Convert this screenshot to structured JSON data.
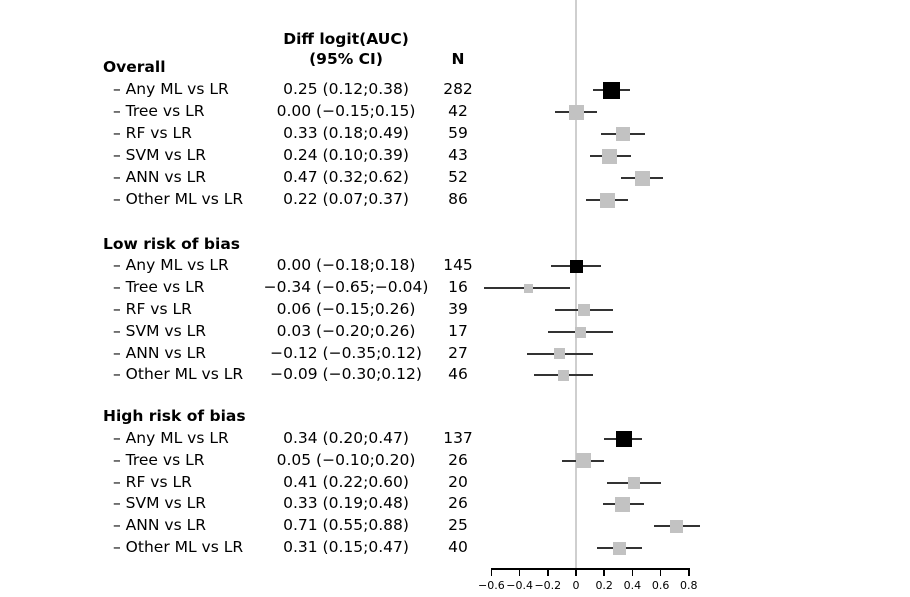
{
  "chart_data": {
    "type": "scatter",
    "variant": "forest-plot",
    "columns": {
      "effect_line1": "Diff logit(AUC)",
      "effect_line2": "(95% CI)",
      "n": "N"
    },
    "axis": {
      "xlim": [
        -0.6,
        0.8
      ],
      "reference_x": 0,
      "ticks": [
        {
          "value": -0.6,
          "label": "−0.6"
        },
        {
          "value": -0.4,
          "label": "−0.4"
        },
        {
          "value": -0.2,
          "label": "−0.2"
        },
        {
          "value": 0,
          "label": "0"
        },
        {
          "value": 0.2,
          "label": "0.2"
        },
        {
          "value": 0.4,
          "label": "0.4"
        },
        {
          "value": 0.6,
          "label": "0.6"
        },
        {
          "value": 0.8,
          "label": "0.8"
        }
      ]
    },
    "colors": {
      "marker": "#c2c2c2",
      "summary_marker": "#000000",
      "ci_line": "#333333",
      "reference_line": "#cfcfcf",
      "axis_line": "#000000",
      "text": "#000000",
      "background": "#ffffff"
    },
    "sections": [
      {
        "header": "Overall",
        "rows": [
          {
            "label": "– Any ML vs LR",
            "estimate": "0.25 (0.12;0.38)",
            "n": "282",
            "value": 0.25,
            "lower": 0.12,
            "upper": 0.38,
            "summary": true,
            "size": 17
          },
          {
            "label": "– Tree vs LR",
            "estimate": "0.00 (−0.15;0.15)",
            "n": "42",
            "value": 0.0,
            "lower": -0.15,
            "upper": 0.15,
            "summary": false,
            "size": 15
          },
          {
            "label": "– RF vs LR",
            "estimate": "0.33 (0.18;0.49)",
            "n": "59",
            "value": 0.33,
            "lower": 0.18,
            "upper": 0.49,
            "summary": false,
            "size": 14
          },
          {
            "label": "– SVM vs LR",
            "estimate": "0.24 (0.10;0.39)",
            "n": "43",
            "value": 0.24,
            "lower": 0.1,
            "upper": 0.39,
            "summary": false,
            "size": 15
          },
          {
            "label": "– ANN vs LR",
            "estimate": "0.47 (0.32;0.62)",
            "n": "52",
            "value": 0.47,
            "lower": 0.32,
            "upper": 0.62,
            "summary": false,
            "size": 15
          },
          {
            "label": "– Other ML vs LR",
            "estimate": "0.22 (0.07;0.37)",
            "n": "86",
            "value": 0.22,
            "lower": 0.07,
            "upper": 0.37,
            "summary": false,
            "size": 15
          }
        ]
      },
      {
        "header": "Low risk of bias",
        "rows": [
          {
            "label": "– Any ML vs LR",
            "estimate": "0.00 (−0.18;0.18)",
            "n": "145",
            "value": 0.0,
            "lower": -0.18,
            "upper": 0.18,
            "summary": true,
            "size": 13
          },
          {
            "label": "– Tree vs LR",
            "estimate": "−0.34 (−0.65;−0.04)",
            "n": "16",
            "value": -0.34,
            "lower": -0.65,
            "upper": -0.04,
            "summary": false,
            "size": 9
          },
          {
            "label": "– RF vs LR",
            "estimate": "0.06 (−0.15;0.26)",
            "n": "39",
            "value": 0.06,
            "lower": -0.15,
            "upper": 0.26,
            "summary": false,
            "size": 12
          },
          {
            "label": "– SVM vs LR",
            "estimate": "0.03 (−0.20;0.26)",
            "n": "17",
            "value": 0.03,
            "lower": -0.2,
            "upper": 0.26,
            "summary": false,
            "size": 11
          },
          {
            "label": "– ANN vs LR",
            "estimate": "−0.12 (−0.35;0.12)",
            "n": "27",
            "value": -0.12,
            "lower": -0.35,
            "upper": 0.12,
            "summary": false,
            "size": 11
          },
          {
            "label": "– Other ML vs LR",
            "estimate": "−0.09 (−0.30;0.12)",
            "n": "46",
            "value": -0.09,
            "lower": -0.3,
            "upper": 0.12,
            "summary": false,
            "size": 11
          }
        ]
      },
      {
        "header": "High risk of bias",
        "rows": [
          {
            "label": "– Any ML vs LR",
            "estimate": "0.34 (0.20;0.47)",
            "n": "137",
            "value": 0.34,
            "lower": 0.2,
            "upper": 0.47,
            "summary": true,
            "size": 16
          },
          {
            "label": "– Tree vs LR",
            "estimate": "0.05 (−0.10;0.20)",
            "n": "26",
            "value": 0.05,
            "lower": -0.1,
            "upper": 0.2,
            "summary": false,
            "size": 15
          },
          {
            "label": "– RF vs LR",
            "estimate": "0.41 (0.22;0.60)",
            "n": "20",
            "value": 0.41,
            "lower": 0.22,
            "upper": 0.6,
            "summary": false,
            "size": 12
          },
          {
            "label": "– SVM vs LR",
            "estimate": "0.33 (0.19;0.48)",
            "n": "26",
            "value": 0.33,
            "lower": 0.19,
            "upper": 0.48,
            "summary": false,
            "size": 15
          },
          {
            "label": "– ANN vs LR",
            "estimate": "0.71 (0.55;0.88)",
            "n": "25",
            "value": 0.71,
            "lower": 0.55,
            "upper": 0.88,
            "summary": false,
            "size": 13
          },
          {
            "label": "– Other ML vs LR",
            "estimate": "0.31 (0.15;0.47)",
            "n": "40",
            "value": 0.31,
            "lower": 0.15,
            "upper": 0.47,
            "summary": false,
            "size": 13
          }
        ]
      }
    ]
  }
}
